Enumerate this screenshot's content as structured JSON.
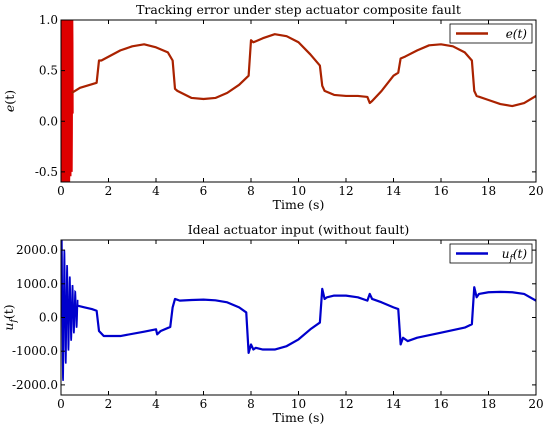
{
  "chart_data": [
    {
      "type": "line",
      "title": "Tracking error under step actuator composite fault",
      "xlabel": "Time (s)",
      "ylabel": "e(t)",
      "xlim": [
        0,
        20
      ],
      "ylim": [
        -0.6,
        1.0
      ],
      "xticks": [
        0,
        2,
        4,
        6,
        8,
        10,
        12,
        14,
        16,
        18,
        20
      ],
      "xtick_labels": [
        "0",
        "2",
        "4",
        "6",
        "8",
        "10",
        "12",
        "14",
        "16",
        "18",
        "20"
      ],
      "yticks": [
        1.0,
        0.5,
        0.0,
        -0.5
      ],
      "ytick_labels": [
        "1.0",
        "0.5",
        "0.0",
        "-0.5"
      ],
      "grid": false,
      "legend_position": "top-right",
      "series": [
        {
          "name": "e(t)",
          "color": "#aa2200",
          "x": [
            0.45,
            0.8,
            1.5,
            1.6,
            1.7,
            2.5,
            3.0,
            3.5,
            4.0,
            4.5,
            4.7,
            4.8,
            4.9,
            5.5,
            6.0,
            6.5,
            7.0,
            7.5,
            7.9,
            8.0,
            8.1,
            8.5,
            9.0,
            9.5,
            10.0,
            10.5,
            10.9,
            11.0,
            11.1,
            11.5,
            12.0,
            12.5,
            12.9,
            13.0,
            13.1,
            13.5,
            14.0,
            14.2,
            14.3,
            14.5,
            15.0,
            15.5,
            16.0,
            16.5,
            17.0,
            17.3,
            17.4,
            17.5,
            18.0,
            18.5,
            19.0,
            19.5,
            20.0
          ],
          "y": [
            0.28,
            0.33,
            0.38,
            0.6,
            0.6,
            0.7,
            0.74,
            0.76,
            0.73,
            0.68,
            0.6,
            0.32,
            0.3,
            0.23,
            0.22,
            0.23,
            0.28,
            0.36,
            0.45,
            0.8,
            0.78,
            0.82,
            0.86,
            0.84,
            0.78,
            0.66,
            0.55,
            0.35,
            0.3,
            0.26,
            0.25,
            0.25,
            0.24,
            0.18,
            0.2,
            0.3,
            0.45,
            0.48,
            0.62,
            0.64,
            0.7,
            0.75,
            0.76,
            0.74,
            0.68,
            0.6,
            0.3,
            0.25,
            0.21,
            0.17,
            0.15,
            0.18,
            0.25
          ]
        }
      ]
    },
    {
      "type": "line",
      "title": "Ideal actuator input (without fault)",
      "xlabel": "Time (s)",
      "ylabel": "u_f(t)",
      "xlim": [
        0,
        20
      ],
      "ylim": [
        -2300,
        2300
      ],
      "xticks": [
        0,
        2,
        4,
        6,
        8,
        10,
        12,
        14,
        16,
        18,
        20
      ],
      "xtick_labels": [
        "0",
        "2",
        "4",
        "6",
        "8",
        "10",
        "12",
        "14",
        "16",
        "18",
        "20"
      ],
      "yticks": [
        2000,
        1000,
        0,
        -1000,
        -2000
      ],
      "ytick_labels": [
        "2000.0",
        "1000.0",
        "0.0",
        "-1000.0",
        "-2000.0"
      ],
      "grid": false,
      "legend_position": "top-right",
      "series": [
        {
          "name": "u_f(t)",
          "color": "#0000cc",
          "x": [
            0.7,
            1.0,
            1.3,
            1.5,
            1.6,
            1.8,
            2.5,
            3.5,
            4.0,
            4.05,
            4.2,
            4.6,
            4.7,
            4.8,
            5.0,
            5.5,
            6.0,
            6.5,
            7.0,
            7.5,
            7.8,
            7.9,
            8.0,
            8.1,
            8.2,
            8.5,
            9.0,
            9.5,
            10.0,
            10.5,
            10.9,
            11.0,
            11.1,
            11.2,
            11.5,
            12.0,
            12.5,
            12.9,
            13.0,
            13.1,
            13.5,
            14.0,
            14.2,
            14.3,
            14.4,
            14.6,
            15.0,
            16.0,
            17.0,
            17.3,
            17.4,
            17.5,
            17.6,
            18.0,
            18.5,
            19.0,
            19.5,
            20.0
          ],
          "y": [
            350,
            300,
            250,
            200,
            -400,
            -550,
            -550,
            -420,
            -350,
            -500,
            -400,
            -280,
            300,
            550,
            500,
            520,
            530,
            510,
            450,
            300,
            150,
            -1050,
            -800,
            -950,
            -900,
            -950,
            -950,
            -850,
            -650,
            -350,
            -150,
            850,
            550,
            600,
            650,
            650,
            600,
            500,
            700,
            550,
            450,
            300,
            250,
            -800,
            -600,
            -700,
            -600,
            -450,
            -300,
            -200,
            900,
            600,
            700,
            750,
            760,
            750,
            700,
            500
          ]
        }
      ]
    }
  ]
}
